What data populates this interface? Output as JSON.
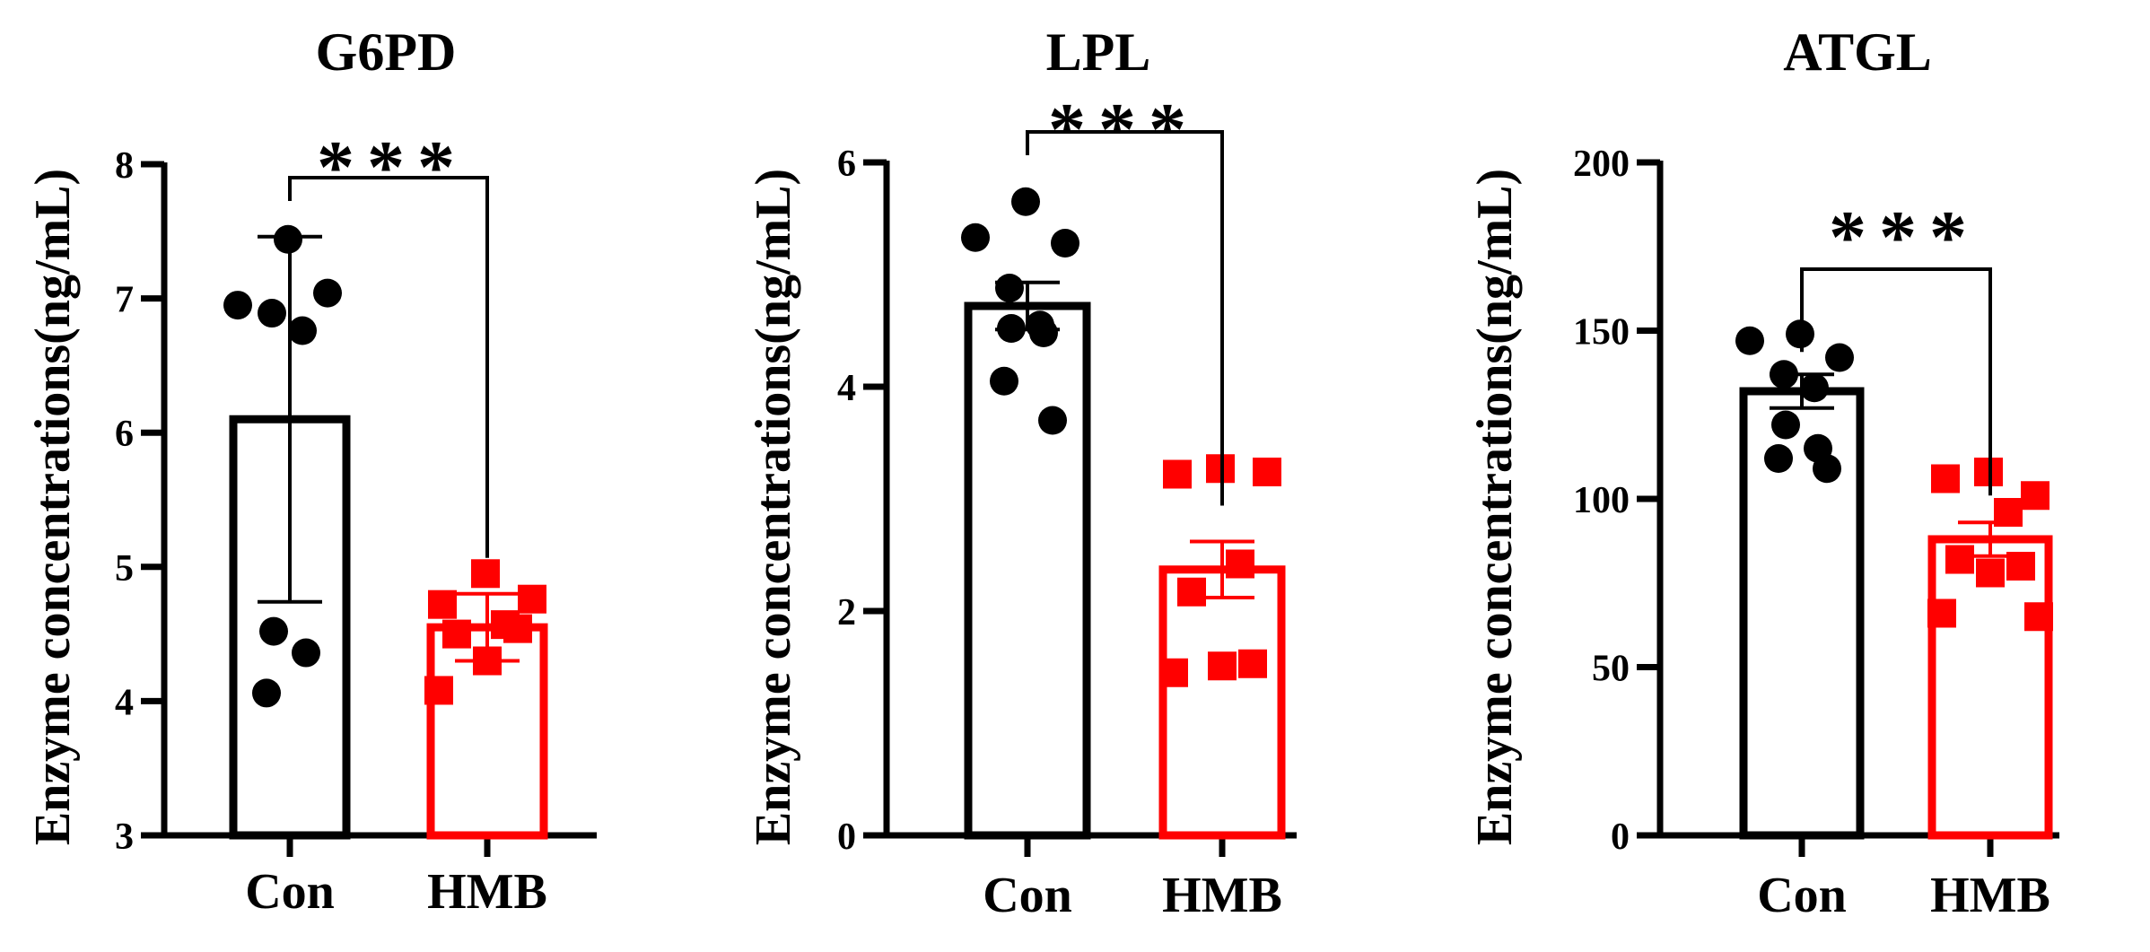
{
  "chart_data": [
    {
      "type": "bar",
      "title": "G6PD",
      "ylabel": "Enzyme concentrations(ng/mL)",
      "categories": [
        "Con",
        "HMB"
      ],
      "ylim": [
        3,
        8
      ],
      "yticks": [
        "3",
        "4",
        "5",
        "6",
        "7",
        "8"
      ],
      "significance": "***",
      "series": [
        {
          "category": "Con",
          "color": "#000000",
          "marker": "circle",
          "mean": 6.1,
          "error": 1.36,
          "points": [
            7.44,
            6.95,
            7.04,
            6.89,
            6.76,
            4.52,
            4.36,
            4.06
          ]
        },
        {
          "category": "HMB",
          "color": "#ff0000",
          "marker": "square",
          "mean": 4.55,
          "error": 0.25,
          "points": [
            4.95,
            4.72,
            4.76,
            4.57,
            4.5,
            4.54,
            4.3,
            4.08
          ]
        }
      ]
    },
    {
      "type": "bar",
      "title": "LPL",
      "ylabel": "Enzyme concentrations(ng/mL)",
      "categories": [
        "Con",
        "HMB"
      ],
      "ylim": [
        0,
        6
      ],
      "yticks": [
        "0",
        "2",
        "4",
        "6"
      ],
      "significance": "***",
      "series": [
        {
          "category": "Con",
          "color": "#000000",
          "marker": "circle",
          "mean": 4.72,
          "error": 0.21,
          "points": [
            5.65,
            5.33,
            5.28,
            4.88,
            4.55,
            4.52,
            4.48,
            4.05,
            3.7
          ]
        },
        {
          "category": "HMB",
          "color": "#ff0000",
          "marker": "square",
          "mean": 2.37,
          "error": 0.25,
          "points": [
            3.27,
            3.22,
            3.24,
            2.42,
            2.17,
            1.53,
            1.51,
            1.45
          ]
        }
      ]
    },
    {
      "type": "bar",
      "title": "ATGL",
      "ylabel": "Enzyme concentrations(ng/mL)",
      "categories": [
        "Con",
        "HMB"
      ],
      "ylim": [
        0,
        200
      ],
      "yticks": [
        "0",
        "50",
        "100",
        "150",
        "200"
      ],
      "significance": "***",
      "series": [
        {
          "category": "Con",
          "color": "#000000",
          "marker": "circle",
          "mean": 132,
          "error": 5,
          "points": [
            149,
            147,
            142,
            137,
            133,
            122,
            115,
            112,
            109
          ]
        },
        {
          "category": "HMB",
          "color": "#ff0000",
          "marker": "square",
          "mean": 88,
          "error": 5,
          "points": [
            108,
            106,
            101,
            96,
            82,
            80,
            78,
            66,
            65
          ]
        }
      ]
    }
  ]
}
